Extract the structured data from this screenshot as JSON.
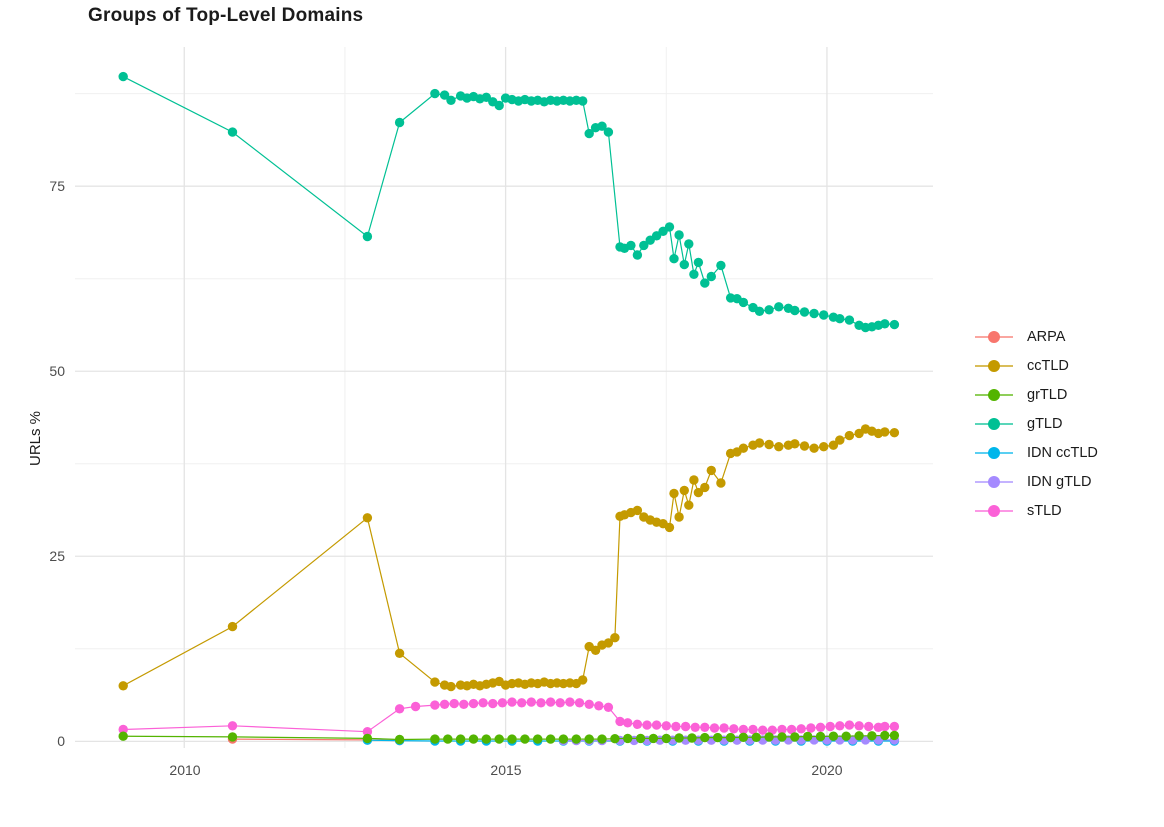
{
  "title": "Groups of Top-Level Domains",
  "chart_data": {
    "type": "line",
    "title": "Groups of Top-Level Domains",
    "xlabel": "",
    "ylabel": "URLs %",
    "grid": true,
    "legend_position": "right",
    "x_axis": {
      "ticks": [
        2010,
        2015,
        2020
      ],
      "tick_labels": [
        "2010",
        "2015",
        "2020"
      ],
      "minor_ticks": [
        2012.5,
        2017.5
      ],
      "range": [
        2008.3,
        2021.65
      ]
    },
    "y_axis": {
      "ticks": [
        0,
        25,
        50,
        75
      ],
      "tick_labels": [
        "0",
        "25",
        "50",
        "75"
      ],
      "minor_ticks": [
        12.5,
        37.5,
        62.5,
        87.5
      ],
      "range": [
        -0.9,
        93.8
      ]
    },
    "series": [
      {
        "name": "ARPA",
        "color": "#F8766D",
        "points": [
          [
            2010.75,
            0.3
          ],
          [
            2012.85,
            0.2
          ],
          [
            2013.35,
            0.1
          ]
        ]
      },
      {
        "name": "ccTLD",
        "color": "#C49A00",
        "points": [
          [
            2009.05,
            7.5
          ],
          [
            2010.75,
            15.5
          ],
          [
            2012.85,
            30.2
          ],
          [
            2013.35,
            11.9
          ],
          [
            2013.9,
            8.0
          ],
          [
            2014.05,
            7.6
          ],
          [
            2014.15,
            7.4
          ],
          [
            2014.3,
            7.6
          ],
          [
            2014.4,
            7.5
          ],
          [
            2014.5,
            7.7
          ],
          [
            2014.6,
            7.5
          ],
          [
            2014.7,
            7.7
          ],
          [
            2014.8,
            7.9
          ],
          [
            2014.9,
            8.1
          ],
          [
            2015.0,
            7.6
          ],
          [
            2015.1,
            7.8
          ],
          [
            2015.2,
            7.9
          ],
          [
            2015.3,
            7.7
          ],
          [
            2015.4,
            7.9
          ],
          [
            2015.5,
            7.8
          ],
          [
            2015.6,
            8.0
          ],
          [
            2015.7,
            7.8
          ],
          [
            2015.8,
            7.9
          ],
          [
            2015.9,
            7.8
          ],
          [
            2016.0,
            7.9
          ],
          [
            2016.1,
            7.8
          ],
          [
            2016.2,
            8.3
          ],
          [
            2016.3,
            12.8
          ],
          [
            2016.4,
            12.3
          ],
          [
            2016.5,
            13.0
          ],
          [
            2016.6,
            13.3
          ],
          [
            2016.7,
            14.0
          ],
          [
            2016.78,
            30.4
          ],
          [
            2016.85,
            30.6
          ],
          [
            2016.95,
            30.9
          ],
          [
            2017.05,
            31.2
          ],
          [
            2017.15,
            30.3
          ],
          [
            2017.25,
            29.9
          ],
          [
            2017.35,
            29.6
          ],
          [
            2017.45,
            29.4
          ],
          [
            2017.55,
            28.9
          ],
          [
            2017.62,
            33.5
          ],
          [
            2017.7,
            30.3
          ],
          [
            2017.78,
            33.9
          ],
          [
            2017.85,
            31.9
          ],
          [
            2017.93,
            35.3
          ],
          [
            2018.0,
            33.6
          ],
          [
            2018.1,
            34.3
          ],
          [
            2018.2,
            36.6
          ],
          [
            2018.35,
            34.9
          ],
          [
            2018.5,
            38.9
          ],
          [
            2018.6,
            39.1
          ],
          [
            2018.7,
            39.6
          ],
          [
            2018.85,
            40.0
          ],
          [
            2018.95,
            40.3
          ],
          [
            2019.1,
            40.1
          ],
          [
            2019.25,
            39.8
          ],
          [
            2019.4,
            40.0
          ],
          [
            2019.5,
            40.2
          ],
          [
            2019.65,
            39.9
          ],
          [
            2019.8,
            39.6
          ],
          [
            2019.95,
            39.8
          ],
          [
            2020.1,
            40.0
          ],
          [
            2020.2,
            40.7
          ],
          [
            2020.35,
            41.3
          ],
          [
            2020.5,
            41.6
          ],
          [
            2020.6,
            42.2
          ],
          [
            2020.7,
            41.9
          ],
          [
            2020.8,
            41.6
          ],
          [
            2020.9,
            41.8
          ],
          [
            2021.05,
            41.7
          ]
        ]
      },
      {
        "name": "grTLD",
        "color": "#53B400",
        "points": [
          [
            2009.05,
            0.7
          ],
          [
            2010.75,
            0.6
          ],
          [
            2012.85,
            0.4
          ],
          [
            2013.35,
            0.25
          ],
          [
            2013.9,
            0.3
          ],
          [
            2014.1,
            0.3
          ],
          [
            2014.3,
            0.3
          ],
          [
            2014.5,
            0.3
          ],
          [
            2014.7,
            0.3
          ],
          [
            2014.9,
            0.3
          ],
          [
            2015.1,
            0.3
          ],
          [
            2015.3,
            0.3
          ],
          [
            2015.5,
            0.3
          ],
          [
            2015.7,
            0.3
          ],
          [
            2015.9,
            0.3
          ],
          [
            2016.1,
            0.3
          ],
          [
            2016.3,
            0.3
          ],
          [
            2016.5,
            0.3
          ],
          [
            2016.7,
            0.35
          ],
          [
            2016.9,
            0.4
          ],
          [
            2017.1,
            0.4
          ],
          [
            2017.3,
            0.4
          ],
          [
            2017.5,
            0.4
          ],
          [
            2017.7,
            0.45
          ],
          [
            2017.9,
            0.45
          ],
          [
            2018.1,
            0.5
          ],
          [
            2018.3,
            0.5
          ],
          [
            2018.5,
            0.5
          ],
          [
            2018.7,
            0.55
          ],
          [
            2018.9,
            0.55
          ],
          [
            2019.1,
            0.6
          ],
          [
            2019.3,
            0.6
          ],
          [
            2019.5,
            0.6
          ],
          [
            2019.7,
            0.65
          ],
          [
            2019.9,
            0.65
          ],
          [
            2020.1,
            0.7
          ],
          [
            2020.3,
            0.7
          ],
          [
            2020.5,
            0.75
          ],
          [
            2020.7,
            0.75
          ],
          [
            2020.9,
            0.8
          ],
          [
            2021.05,
            0.8
          ]
        ]
      },
      {
        "name": "gTLD",
        "color": "#00C094",
        "points": [
          [
            2009.05,
            89.8
          ],
          [
            2010.75,
            82.3
          ],
          [
            2012.85,
            68.2
          ],
          [
            2013.35,
            83.6
          ],
          [
            2013.9,
            87.5
          ],
          [
            2014.05,
            87.3
          ],
          [
            2014.15,
            86.6
          ],
          [
            2014.3,
            87.2
          ],
          [
            2014.4,
            86.9
          ],
          [
            2014.5,
            87.1
          ],
          [
            2014.6,
            86.8
          ],
          [
            2014.7,
            87.0
          ],
          [
            2014.8,
            86.4
          ],
          [
            2014.9,
            85.9
          ],
          [
            2015.0,
            86.9
          ],
          [
            2015.1,
            86.7
          ],
          [
            2015.2,
            86.5
          ],
          [
            2015.3,
            86.7
          ],
          [
            2015.4,
            86.5
          ],
          [
            2015.5,
            86.6
          ],
          [
            2015.6,
            86.4
          ],
          [
            2015.7,
            86.6
          ],
          [
            2015.8,
            86.5
          ],
          [
            2015.9,
            86.6
          ],
          [
            2016.0,
            86.5
          ],
          [
            2016.1,
            86.6
          ],
          [
            2016.2,
            86.5
          ],
          [
            2016.3,
            82.1
          ],
          [
            2016.4,
            82.9
          ],
          [
            2016.5,
            83.1
          ],
          [
            2016.6,
            82.3
          ],
          [
            2016.78,
            66.8
          ],
          [
            2016.85,
            66.6
          ],
          [
            2016.95,
            67.0
          ],
          [
            2017.05,
            65.7
          ],
          [
            2017.15,
            67.0
          ],
          [
            2017.25,
            67.7
          ],
          [
            2017.35,
            68.3
          ],
          [
            2017.45,
            68.9
          ],
          [
            2017.55,
            69.5
          ],
          [
            2017.62,
            65.2
          ],
          [
            2017.7,
            68.4
          ],
          [
            2017.78,
            64.4
          ],
          [
            2017.85,
            67.2
          ],
          [
            2017.93,
            63.1
          ],
          [
            2018.0,
            64.7
          ],
          [
            2018.1,
            61.9
          ],
          [
            2018.2,
            62.8
          ],
          [
            2018.35,
            64.3
          ],
          [
            2018.5,
            59.9
          ],
          [
            2018.6,
            59.8
          ],
          [
            2018.7,
            59.3
          ],
          [
            2018.85,
            58.6
          ],
          [
            2018.95,
            58.1
          ],
          [
            2019.1,
            58.3
          ],
          [
            2019.25,
            58.7
          ],
          [
            2019.4,
            58.5
          ],
          [
            2019.5,
            58.2
          ],
          [
            2019.65,
            58.0
          ],
          [
            2019.8,
            57.8
          ],
          [
            2019.95,
            57.6
          ],
          [
            2020.1,
            57.3
          ],
          [
            2020.2,
            57.1
          ],
          [
            2020.35,
            56.9
          ],
          [
            2020.5,
            56.2
          ],
          [
            2020.6,
            55.9
          ],
          [
            2020.7,
            56.0
          ],
          [
            2020.8,
            56.2
          ],
          [
            2020.9,
            56.4
          ],
          [
            2021.05,
            56.3
          ]
        ]
      },
      {
        "name": "IDN ccTLD",
        "color": "#00B6EB",
        "points": [
          [
            2012.85,
            0.15
          ],
          [
            2013.35,
            0.1
          ],
          [
            2013.9,
            0.05
          ],
          [
            2014.3,
            0.05
          ],
          [
            2014.7,
            0.05
          ],
          [
            2015.1,
            0.05
          ],
          [
            2015.5,
            0.05
          ],
          [
            2015.9,
            0.05
          ],
          [
            2016.3,
            0.05
          ],
          [
            2016.78,
            0.05
          ],
          [
            2017.2,
            0.05
          ],
          [
            2017.6,
            0.05
          ],
          [
            2018.0,
            0.05
          ],
          [
            2018.4,
            0.05
          ],
          [
            2018.8,
            0.05
          ],
          [
            2019.2,
            0.05
          ],
          [
            2019.6,
            0.05
          ],
          [
            2020.0,
            0.05
          ],
          [
            2020.4,
            0.05
          ],
          [
            2020.8,
            0.05
          ],
          [
            2021.05,
            0.05
          ]
        ]
      },
      {
        "name": "IDN gTLD",
        "color": "#A58AFF",
        "points": [
          [
            2015.9,
            0.1
          ],
          [
            2016.1,
            0.1
          ],
          [
            2016.3,
            0.1
          ],
          [
            2016.5,
            0.1
          ],
          [
            2016.78,
            0.12
          ],
          [
            2017.0,
            0.12
          ],
          [
            2017.2,
            0.12
          ],
          [
            2017.4,
            0.15
          ],
          [
            2017.6,
            0.15
          ],
          [
            2017.8,
            0.15
          ],
          [
            2018.0,
            0.15
          ],
          [
            2018.2,
            0.15
          ],
          [
            2018.4,
            0.15
          ],
          [
            2018.6,
            0.15
          ],
          [
            2018.8,
            0.18
          ],
          [
            2019.0,
            0.18
          ],
          [
            2019.2,
            0.18
          ],
          [
            2019.4,
            0.2
          ],
          [
            2019.6,
            0.2
          ],
          [
            2019.8,
            0.2
          ],
          [
            2020.0,
            0.2
          ],
          [
            2020.2,
            0.2
          ],
          [
            2020.4,
            0.2
          ],
          [
            2020.6,
            0.2
          ],
          [
            2020.8,
            0.2
          ],
          [
            2021.05,
            0.2
          ]
        ]
      },
      {
        "name": "sTLD",
        "color": "#FB61D7",
        "points": [
          [
            2009.05,
            1.6
          ],
          [
            2010.75,
            2.1
          ],
          [
            2012.85,
            1.3
          ],
          [
            2013.35,
            4.4
          ],
          [
            2013.6,
            4.7
          ],
          [
            2013.9,
            4.9
          ],
          [
            2014.05,
            5.0
          ],
          [
            2014.2,
            5.1
          ],
          [
            2014.35,
            5.0
          ],
          [
            2014.5,
            5.1
          ],
          [
            2014.65,
            5.2
          ],
          [
            2014.8,
            5.1
          ],
          [
            2014.95,
            5.2
          ],
          [
            2015.1,
            5.3
          ],
          [
            2015.25,
            5.2
          ],
          [
            2015.4,
            5.3
          ],
          [
            2015.55,
            5.2
          ],
          [
            2015.7,
            5.3
          ],
          [
            2015.85,
            5.2
          ],
          [
            2016.0,
            5.3
          ],
          [
            2016.15,
            5.2
          ],
          [
            2016.3,
            5.0
          ],
          [
            2016.45,
            4.8
          ],
          [
            2016.6,
            4.6
          ],
          [
            2016.78,
            2.7
          ],
          [
            2016.9,
            2.5
          ],
          [
            2017.05,
            2.3
          ],
          [
            2017.2,
            2.2
          ],
          [
            2017.35,
            2.2
          ],
          [
            2017.5,
            2.1
          ],
          [
            2017.65,
            2.0
          ],
          [
            2017.8,
            2.0
          ],
          [
            2017.95,
            1.9
          ],
          [
            2018.1,
            1.9
          ],
          [
            2018.25,
            1.8
          ],
          [
            2018.4,
            1.8
          ],
          [
            2018.55,
            1.7
          ],
          [
            2018.7,
            1.6
          ],
          [
            2018.85,
            1.6
          ],
          [
            2019.0,
            1.5
          ],
          [
            2019.15,
            1.5
          ],
          [
            2019.3,
            1.6
          ],
          [
            2019.45,
            1.6
          ],
          [
            2019.6,
            1.7
          ],
          [
            2019.75,
            1.8
          ],
          [
            2019.9,
            1.9
          ],
          [
            2020.05,
            2.0
          ],
          [
            2020.2,
            2.1
          ],
          [
            2020.35,
            2.2
          ],
          [
            2020.5,
            2.1
          ],
          [
            2020.65,
            2.0
          ],
          [
            2020.8,
            1.9
          ],
          [
            2020.9,
            2.0
          ],
          [
            2021.05,
            2.0
          ]
        ]
      }
    ]
  }
}
